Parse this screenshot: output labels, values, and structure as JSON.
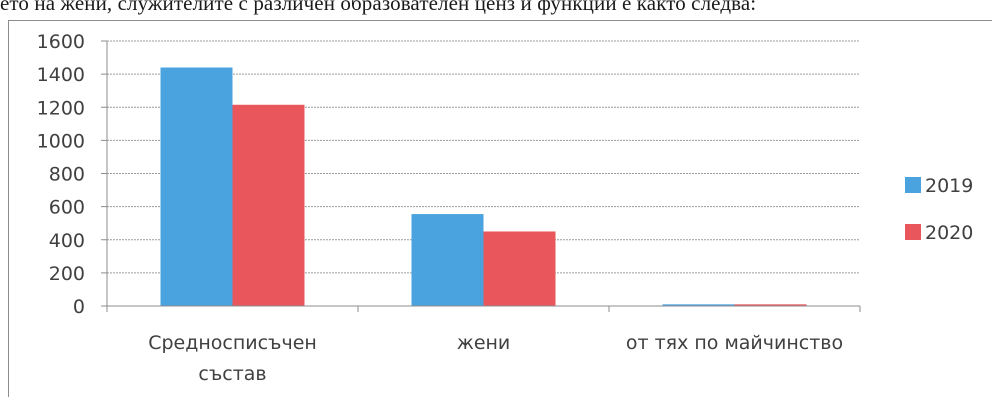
{
  "page": {
    "top_text": "ето на жени, служителите с различен образователен ценз и функции е както следва:"
  },
  "chart_data": {
    "type": "bar",
    "title": "",
    "xlabel": "",
    "ylabel": "",
    "categories": [
      [
        "Средносписъчен",
        "състав"
      ],
      [
        "жени"
      ],
      [
        "от тях по майчинство"
      ]
    ],
    "series": [
      {
        "name": "2019",
        "color": "#4aa3df",
        "values": [
          1440,
          555,
          10
        ]
      },
      {
        "name": "2020",
        "color": "#e9575d",
        "values": [
          1215,
          450,
          10
        ]
      }
    ],
    "ylim": [
      0,
      1600
    ],
    "yticks": [
      0,
      200,
      400,
      600,
      800,
      1000,
      1200,
      1400,
      1600
    ],
    "grid": true,
    "legend_position": "right"
  }
}
